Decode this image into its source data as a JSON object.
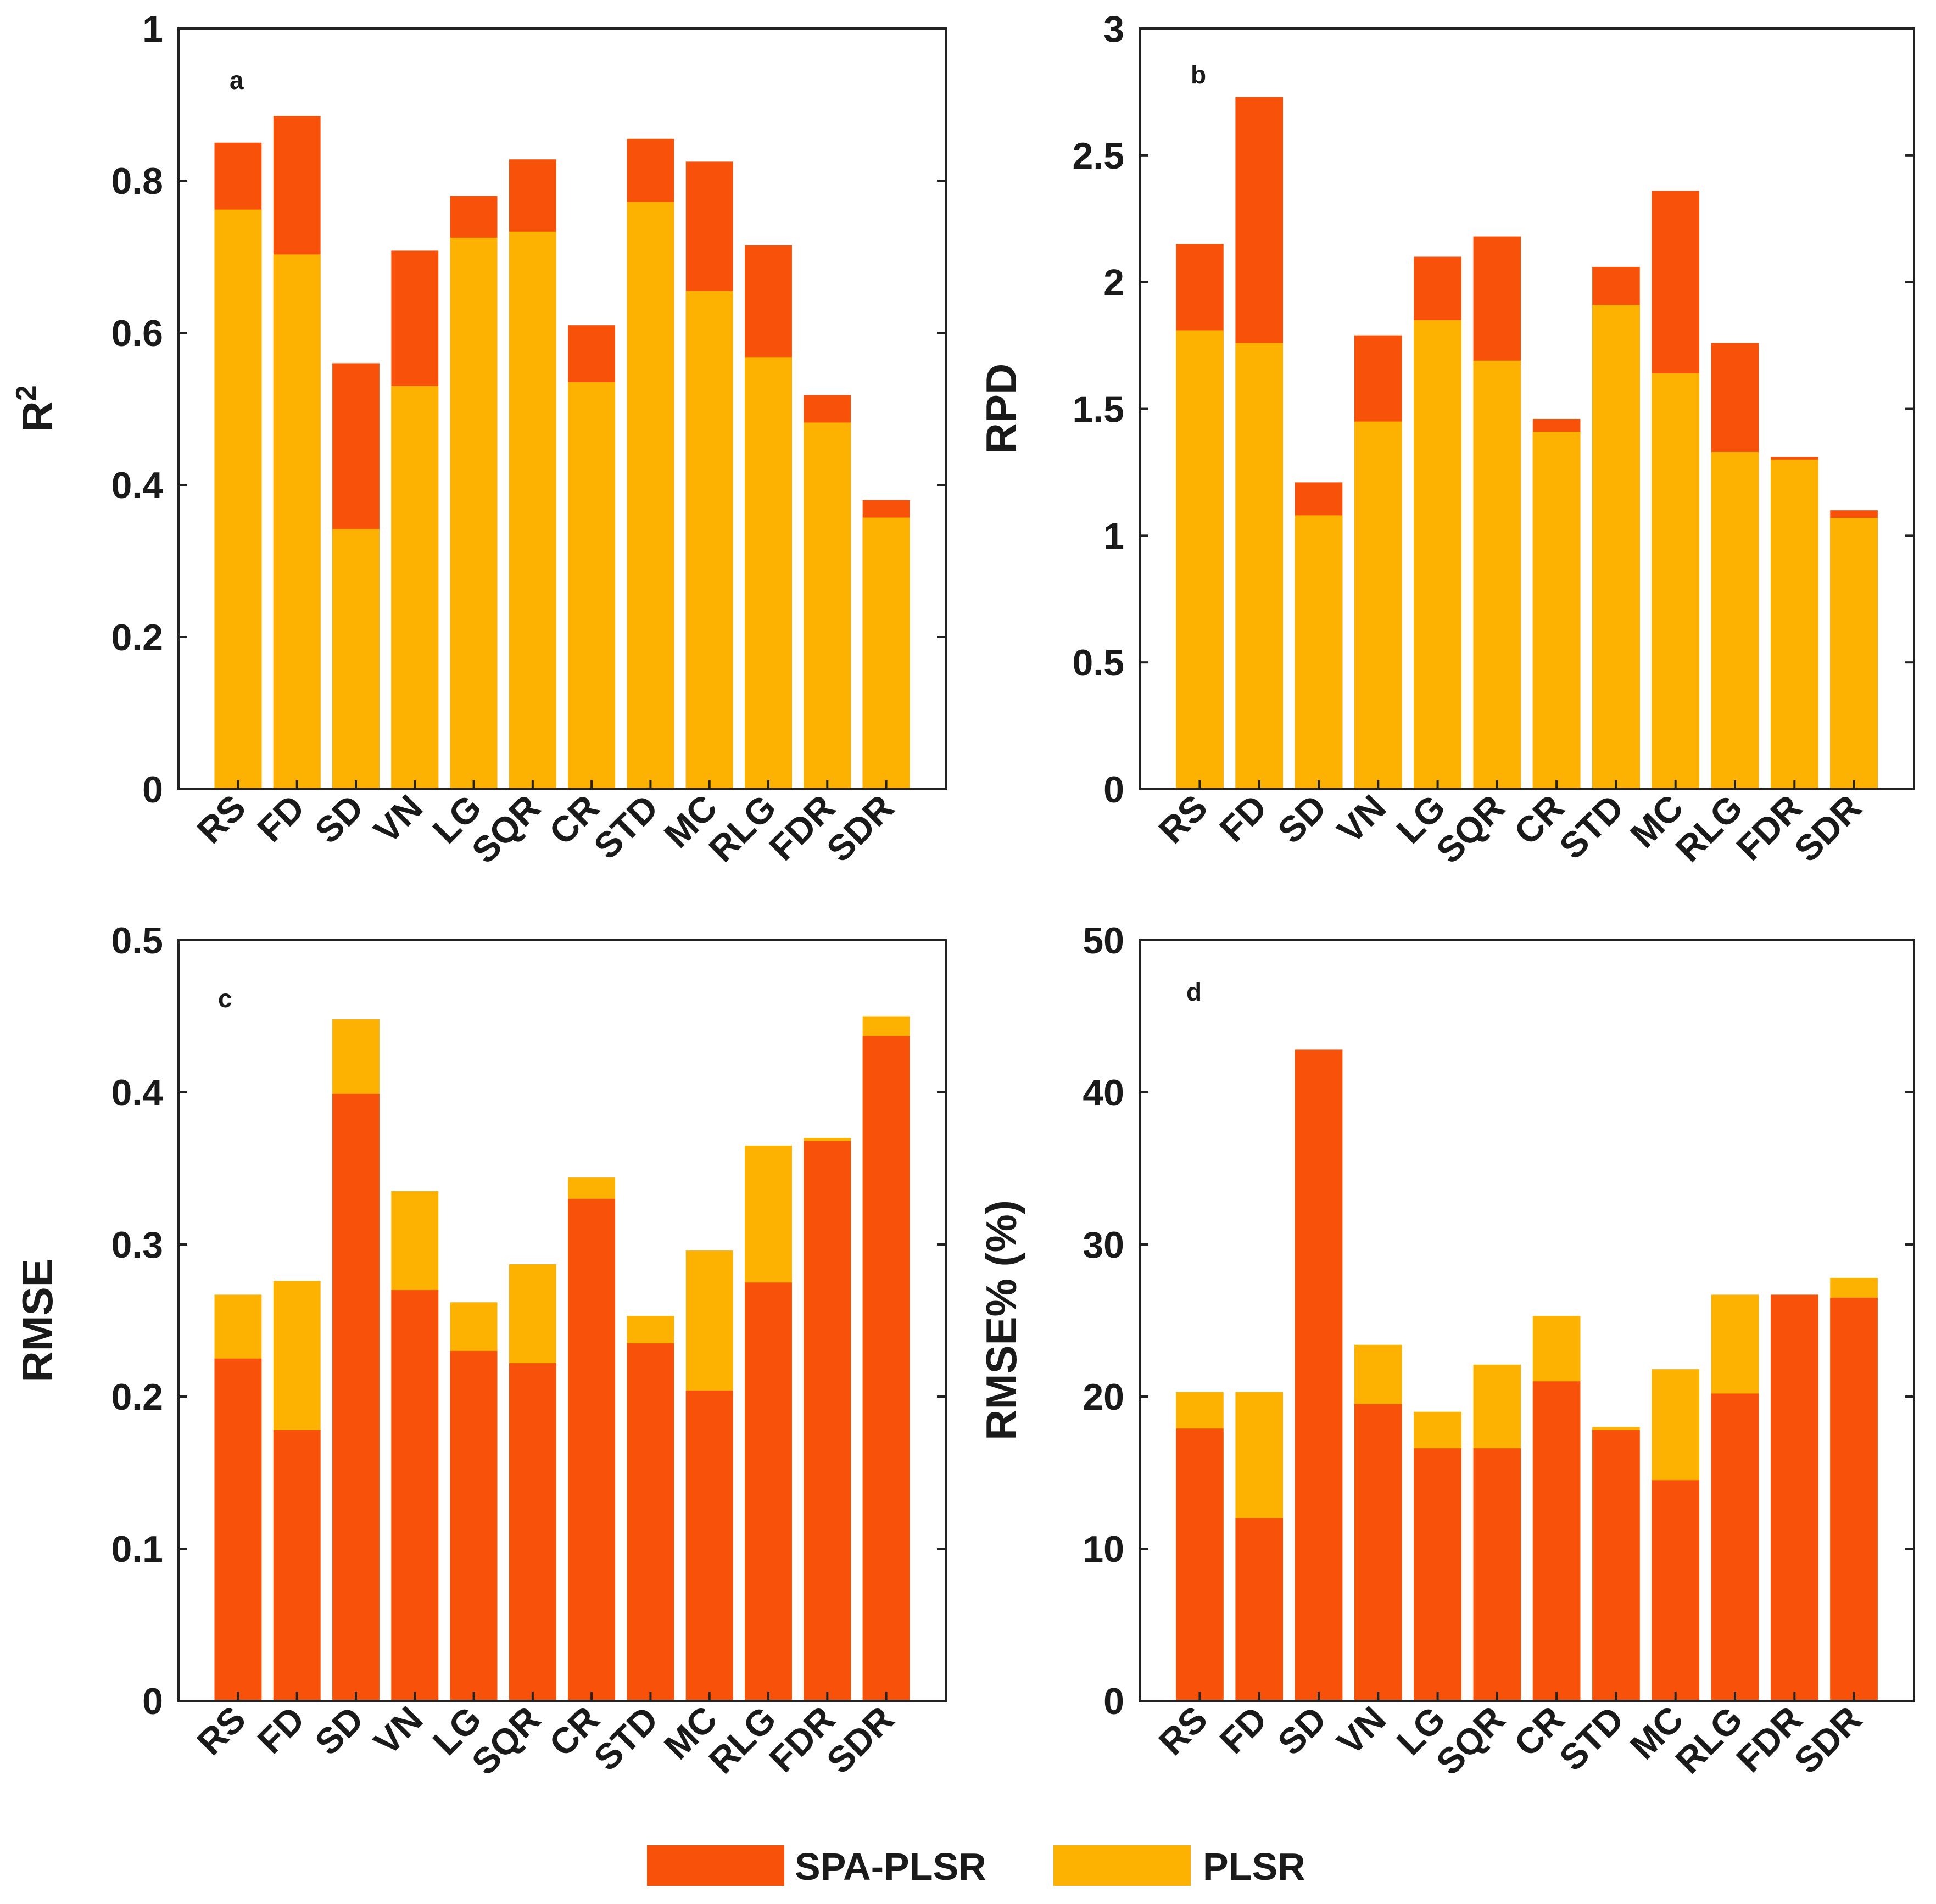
{
  "colors": {
    "spa_plsr": "#F8520A",
    "plsr": "#FDB100"
  },
  "legend": {
    "spa_plsr": "SPA-PLSR",
    "plsr": "PLSR"
  },
  "chart_data": [
    {
      "type": "bar",
      "panel": "a",
      "ylabel": "R",
      "ylabel_sup": "2",
      "ylim": [
        0,
        1
      ],
      "yticks": [
        0,
        0.2,
        0.4,
        0.6,
        0.8,
        1
      ],
      "ytick_labels": [
        "0",
        "0.2",
        "0.4",
        "0.6",
        "0.8",
        "1"
      ],
      "categories": [
        "RS",
        "FD",
        "SD",
        "VN",
        "LG",
        "SQR",
        "CR",
        "STD",
        "MC",
        "RLG",
        "FDR",
        "SDR"
      ],
      "series": [
        {
          "name": "SPA-PLSR",
          "values": [
            0.85,
            0.885,
            0.56,
            0.708,
            0.78,
            0.828,
            0.61,
            0.855,
            0.825,
            0.715,
            0.518,
            0.38
          ]
        },
        {
          "name": "PLSR",
          "values": [
            0.762,
            0.703,
            0.342,
            0.53,
            0.725,
            0.733,
            0.535,
            0.772,
            0.655,
            0.568,
            0.482,
            0.357
          ]
        }
      ]
    },
    {
      "type": "bar",
      "panel": "b",
      "ylabel": "RPD",
      "ylim": [
        0,
        3
      ],
      "yticks": [
        0,
        0.5,
        1,
        1.5,
        2,
        2.5,
        3
      ],
      "ytick_labels": [
        "0",
        "0.5",
        "1",
        "1.5",
        "2",
        "2.5",
        "3"
      ],
      "categories": [
        "RS",
        "FD",
        "SD",
        "VN",
        "LG",
        "SQR",
        "CR",
        "STD",
        "MC",
        "RLG",
        "FDR",
        "SDR"
      ],
      "series": [
        {
          "name": "SPA-PLSR",
          "values": [
            2.15,
            2.73,
            1.21,
            1.79,
            2.1,
            2.18,
            1.46,
            2.06,
            2.36,
            1.76,
            1.31,
            1.1
          ]
        },
        {
          "name": "PLSR",
          "values": [
            1.81,
            1.76,
            1.08,
            1.45,
            1.85,
            1.69,
            1.41,
            1.91,
            1.64,
            1.33,
            1.3,
            1.07
          ]
        }
      ]
    },
    {
      "type": "bar",
      "panel": "c",
      "ylabel": "RMSE",
      "ylim": [
        0,
        0.5
      ],
      "yticks": [
        0,
        0.1,
        0.2,
        0.3,
        0.4,
        0.5
      ],
      "ytick_labels": [
        "0",
        "0.1",
        "0.2",
        "0.3",
        "0.4",
        "0.5"
      ],
      "categories": [
        "RS",
        "FD",
        "SD",
        "VN",
        "LG",
        "SQR",
        "CR",
        "STD",
        "MC",
        "RLG",
        "FDR",
        "SDR"
      ],
      "series": [
        {
          "name": "PLSR",
          "values": [
            0.267,
            0.276,
            0.448,
            0.335,
            0.262,
            0.287,
            0.344,
            0.253,
            0.296,
            0.365,
            0.37,
            0.45
          ]
        },
        {
          "name": "SPA-PLSR",
          "values": [
            0.225,
            0.178,
            0.399,
            0.27,
            0.23,
            0.222,
            0.33,
            0.235,
            0.204,
            0.275,
            0.368,
            0.437
          ]
        }
      ]
    },
    {
      "type": "bar",
      "panel": "d",
      "ylabel": "RMSE% (%)",
      "ylim": [
        0,
        50
      ],
      "yticks": [
        0,
        10,
        20,
        30,
        40,
        50
      ],
      "ytick_labels": [
        "0",
        "10",
        "20",
        "30",
        "40",
        "50"
      ],
      "categories": [
        "RS",
        "FD",
        "SD",
        "VN",
        "LG",
        "SQR",
        "CR",
        "STD",
        "MC",
        "RLG",
        "FDR",
        "SDR"
      ],
      "series": [
        {
          "name": "PLSR",
          "values": [
            20.3,
            20.3,
            42.8,
            23.4,
            19.0,
            22.1,
            25.3,
            18.0,
            21.8,
            26.7,
            26.7,
            27.8
          ]
        },
        {
          "name": "SPA-PLSR",
          "values": [
            17.9,
            12.0,
            42.8,
            19.5,
            16.6,
            16.6,
            21.0,
            17.8,
            14.5,
            20.2,
            26.7,
            26.5
          ]
        }
      ]
    }
  ]
}
